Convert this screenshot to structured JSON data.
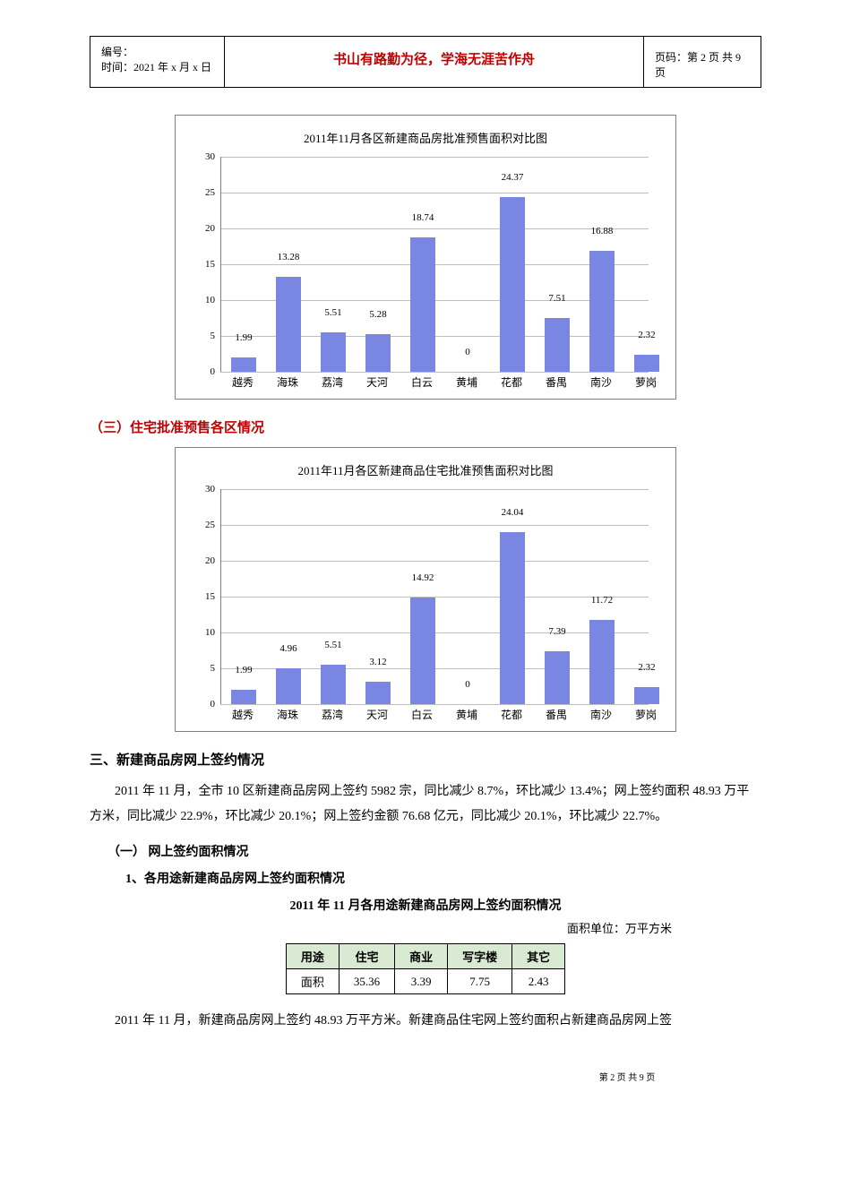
{
  "header": {
    "line1": "编号：",
    "line2": "时间：2021 年 x 月 x 日",
    "center": "书山有路勤为径，学海无涯苦作舟",
    "right": "页码：第 2 页 共 9 页"
  },
  "chart1": {
    "title": "2011年11月各区新建商品房批准预售面积对比图",
    "ylim": [
      0,
      30
    ],
    "ystep": 5,
    "bar_color": "#7a87e2",
    "grid_color": "#bfbfbf",
    "categories": [
      "越秀",
      "海珠",
      "荔湾",
      "天河",
      "白云",
      "黄埔",
      "花都",
      "番禺",
      "南沙",
      "萝岗"
    ],
    "values": [
      1.99,
      13.28,
      5.51,
      5.28,
      18.74,
      0,
      24.37,
      7.51,
      16.88,
      2.32
    ],
    "labels": [
      "1.99",
      "13.28",
      "5.51",
      "5.28",
      "18.74",
      "0",
      "24.37",
      "7.51",
      "16.88",
      "2.32"
    ]
  },
  "section3_title": "（三）住宅批准预售各区情况",
  "chart2": {
    "title": "2011年11月各区新建商品住宅批准预售面积对比图",
    "ylim": [
      0,
      30
    ],
    "ystep": 5,
    "bar_color": "#7a87e2",
    "grid_color": "#bfbfbf",
    "categories": [
      "越秀",
      "海珠",
      "荔湾",
      "天河",
      "白云",
      "黄埔",
      "花都",
      "番禺",
      "南沙",
      "萝岗"
    ],
    "values": [
      1.99,
      4.96,
      5.51,
      3.12,
      14.92,
      0,
      24.04,
      7.39,
      11.72,
      2.32
    ],
    "labels": [
      "1.99",
      "4.96",
      "5.51",
      "3.12",
      "14.92",
      "0",
      "24.04",
      "7.39",
      "11.72",
      "2.32"
    ]
  },
  "h3": "三、新建商品房网上签约情况",
  "para1": "2011 年 11 月，全市 10 区新建商品房网上签约 5982 宗，同比减少 8.7%，环比减少 13.4%；网上签约面积 48.93 万平方米，同比减少 22.9%，环比减少 20.1%；网上签约金额 76.68 亿元，同比减少 20.1%，环比减少 22.7%。",
  "sub1": "（一） 网上签约面积情况",
  "sub2": "1、各用途新建商品房网上签约面积情况",
  "table_title": "2011 年 11 月各用途新建商品房网上签约面积情况",
  "table_unit": "面积单位：万平方米",
  "table": {
    "headers": [
      "用途",
      "住宅",
      "商业",
      "写字楼",
      "其它"
    ],
    "row_label": "面积",
    "row": [
      "35.36",
      "3.39",
      "7.75",
      "2.43"
    ]
  },
  "para2": "2011 年 11 月，新建商品房网上签约 48.93 万平方米。新建商品住宅网上签约面积占新建商品房网上签",
  "footer": "第 2 页 共 9 页"
}
